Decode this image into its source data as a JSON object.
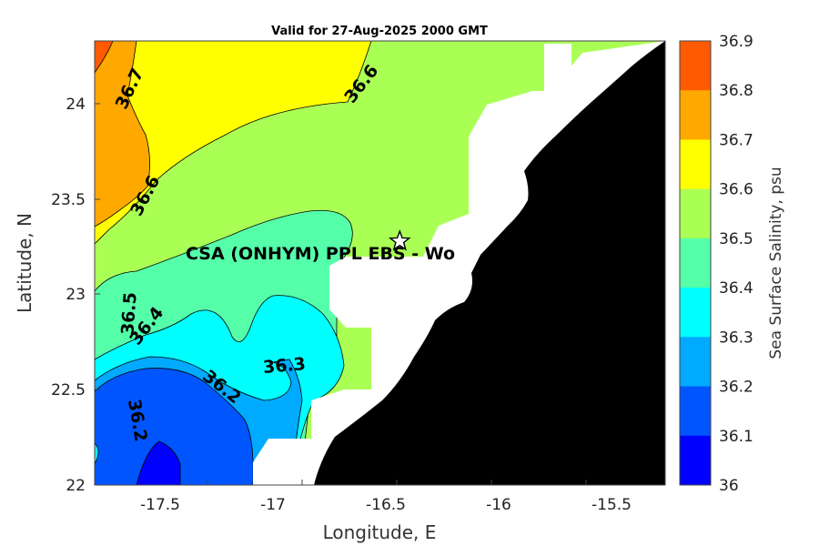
{
  "title": "Valid for 27-Aug-2025 2000 GMT",
  "xlabel": "Longitude, E",
  "ylabel": "Latitude, N",
  "colorbar_label": "Sea Surface Salinity, psu",
  "x_ticks": [
    "-17.5",
    "-17",
    "-16.5",
    "-16",
    "-15.5"
  ],
  "y_ticks": [
    "24",
    "23.5",
    "23",
    "22.5",
    "22"
  ],
  "annotation": "CSA (ONHYM) PPL EBS  - Wo",
  "colorbar_ticks": [
    "36.9",
    "36.8",
    "36.7",
    "36.6",
    "36.5",
    "36.4",
    "36.3",
    "36.2",
    "36.1",
    "36"
  ],
  "colorbar_colors": [
    "#ff5a00",
    "#ffa800",
    "#ffff00",
    "#aaff55",
    "#55ffaa",
    "#00ffff",
    "#00aaff",
    "#0055ff",
    "#0000ff"
  ],
  "contour_labels": [
    {
      "text": "36.7"
    },
    {
      "text": "36.6"
    },
    {
      "text": "36.6"
    },
    {
      "text": "36.5"
    },
    {
      "text": "36.4"
    },
    {
      "text": "36.3"
    },
    {
      "text": "36.2"
    },
    {
      "text": "36.2"
    }
  ],
  "colors": {
    "land": "#000000",
    "masked": "#ffffff",
    "background": "#ffffff"
  },
  "chart_data": {
    "type": "heatmap",
    "title": "Valid for 27-Aug-2025 2000 GMT",
    "xlabel": "Longitude, E",
    "ylabel": "Latitude, N",
    "xlim": [
      -17.8,
      -15.35
    ],
    "ylim": [
      22.0,
      24.35
    ],
    "colorbar_range": [
      36.0,
      36.9
    ],
    "colorbar_step": 0.1,
    "legend": "right",
    "grid": false,
    "marker": {
      "symbol": "star",
      "lon": -16.49,
      "lat": 23.29
    }
  }
}
